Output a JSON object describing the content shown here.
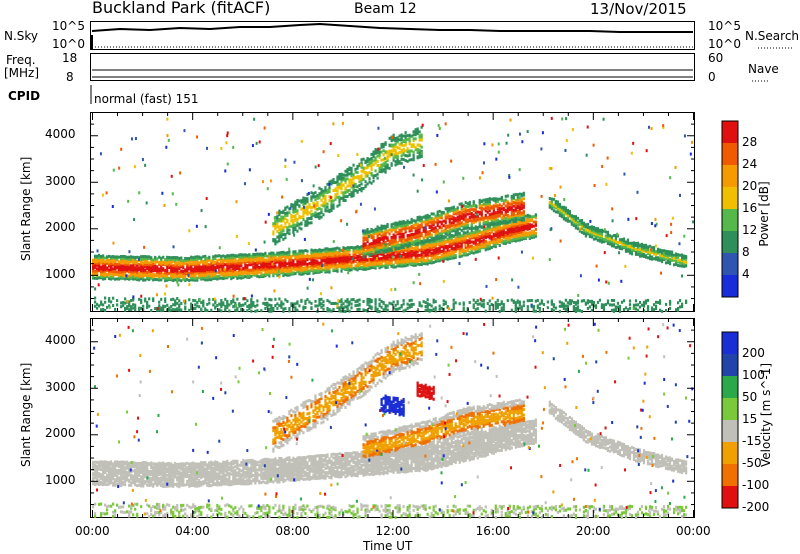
{
  "header": {
    "station": "Buckland Park (fitACF)",
    "beam": "Beam 12",
    "date": "13/Nov/2015"
  },
  "strip": {
    "nsky_label": "N.Sky",
    "nsky_top": "10^5",
    "nsky_bottom": "10^0",
    "nsearch_top": "10^5",
    "nsearch_bottom": "10^0",
    "nsearch_label": "N.Search",
    "freq_label_1": "Freq.",
    "freq_label_2": "[MHz]",
    "freq_top": "18",
    "freq_bottom": "8",
    "nave_top": "60",
    "nave_bottom": "0",
    "nave_label": "Nave",
    "cpid_label": "CPID",
    "cpid_value": "normal (fast) 151"
  },
  "colors": {
    "power_scale": [
      "#1a2bd8",
      "#2f55b0",
      "#2f8f5a",
      "#55b84a",
      "#f0c000",
      "#f59a00",
      "#f05a00",
      "#e01010"
    ],
    "velocity_scale": [
      "#1b2ed6",
      "#2244aa",
      "#2ba84a",
      "#7ac93a",
      "#c0c0b8",
      "#f0a000",
      "#f07000",
      "#e01010"
    ]
  },
  "chart_data": [
    {
      "type": "heatmap",
      "name": "power-panel",
      "ylabel": "Slant Range [km]",
      "xlabel": "Time UT",
      "ylim": [
        200,
        4500
      ],
      "y_ticks": [
        "1000",
        "2000",
        "3000",
        "4000"
      ],
      "x_ticks": [
        "00:00",
        "04:00",
        "08:00",
        "12:00",
        "16:00",
        "20:00",
        "00:00"
      ],
      "colorbar": {
        "label": "Power [dB]",
        "ticks": [
          "4",
          "8",
          "12",
          "16",
          "20",
          "24",
          "28"
        ]
      }
    },
    {
      "type": "heatmap",
      "name": "velocity-panel",
      "ylabel": "Slant Range [km]",
      "xlabel": "Time UT",
      "ylim": [
        200,
        4500
      ],
      "y_ticks": [
        "1000",
        "2000",
        "3000",
        "4000"
      ],
      "x_ticks": [
        "00:00",
        "04:00",
        "08:00",
        "12:00",
        "16:00",
        "20:00",
        "00:00"
      ],
      "colorbar": {
        "label": "Velocity [m s^-1]",
        "ticks": [
          "200",
          "100",
          "50",
          "15",
          "-15",
          "-50",
          "-100",
          "-200"
        ]
      }
    }
  ]
}
